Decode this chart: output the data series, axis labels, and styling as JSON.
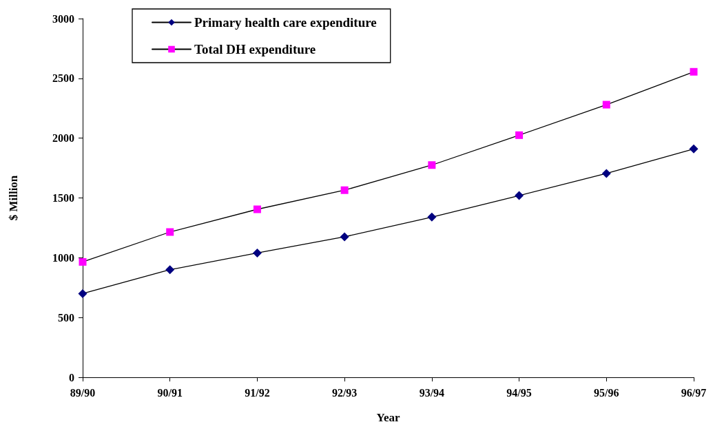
{
  "chart_data": {
    "type": "line",
    "xlabel": "Year",
    "ylabel": "$ Million",
    "categories": [
      "89/90",
      "90/91",
      "91/92",
      "92/93",
      "93/94",
      "94/95",
      "95/96",
      "96/97"
    ],
    "series": [
      {
        "name": "Primary health care expenditure",
        "color": "#000080",
        "marker": "diamond",
        "values": [
          700,
          900,
          1040,
          1175,
          1340,
          1520,
          1705,
          1910
        ]
      },
      {
        "name": "Total DH expenditure",
        "color": "#ff00ff",
        "marker": "square",
        "values": [
          965,
          1215,
          1405,
          1565,
          1775,
          2025,
          2280,
          2555
        ]
      }
    ],
    "ylim": [
      0,
      3000
    ],
    "yticks": [
      0,
      500,
      1000,
      1500,
      2000,
      2500,
      3000
    ],
    "grid": false,
    "legend": "top left",
    "line_style": "solid"
  }
}
